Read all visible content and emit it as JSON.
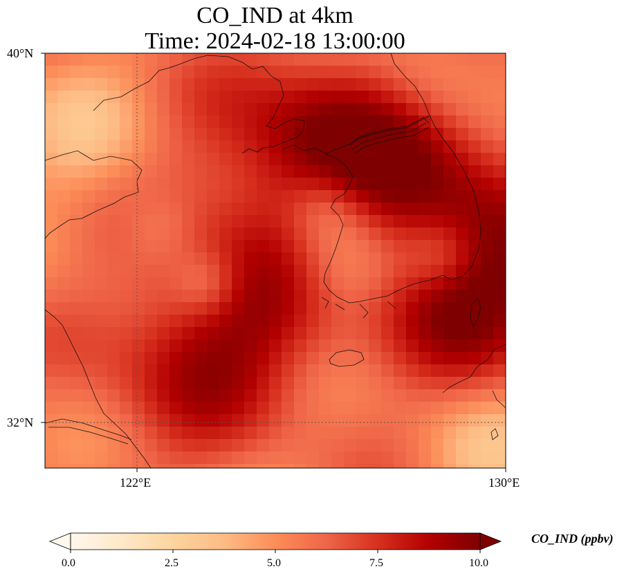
{
  "title": {
    "line1": "CO_IND at 4km",
    "line2": "Time: 2024-02-18 13:00:00"
  },
  "map": {
    "lat_range": [
      31,
      40
    ],
    "lon_range": [
      120,
      130
    ],
    "lat_ticks": [
      "40°N",
      "32°N"
    ],
    "lon_ticks": [
      "122°E",
      "130°E"
    ],
    "gridlines": "dotted at 32°N and 122°E",
    "field": "CO_IND",
    "colormap": "OrRd"
  },
  "colorbar": {
    "label": "CO_IND (ppbv)",
    "min": 0.0,
    "max": 10.0,
    "ticks": [
      "0.0",
      "2.5",
      "5.0",
      "7.5",
      "10.0"
    ],
    "extend": "both",
    "colors": [
      "#fff7ec",
      "#fee8c8",
      "#fdd49e",
      "#fdbb84",
      "#fc8d59",
      "#ef6548",
      "#d7301f",
      "#b30000",
      "#7f0000"
    ]
  }
}
